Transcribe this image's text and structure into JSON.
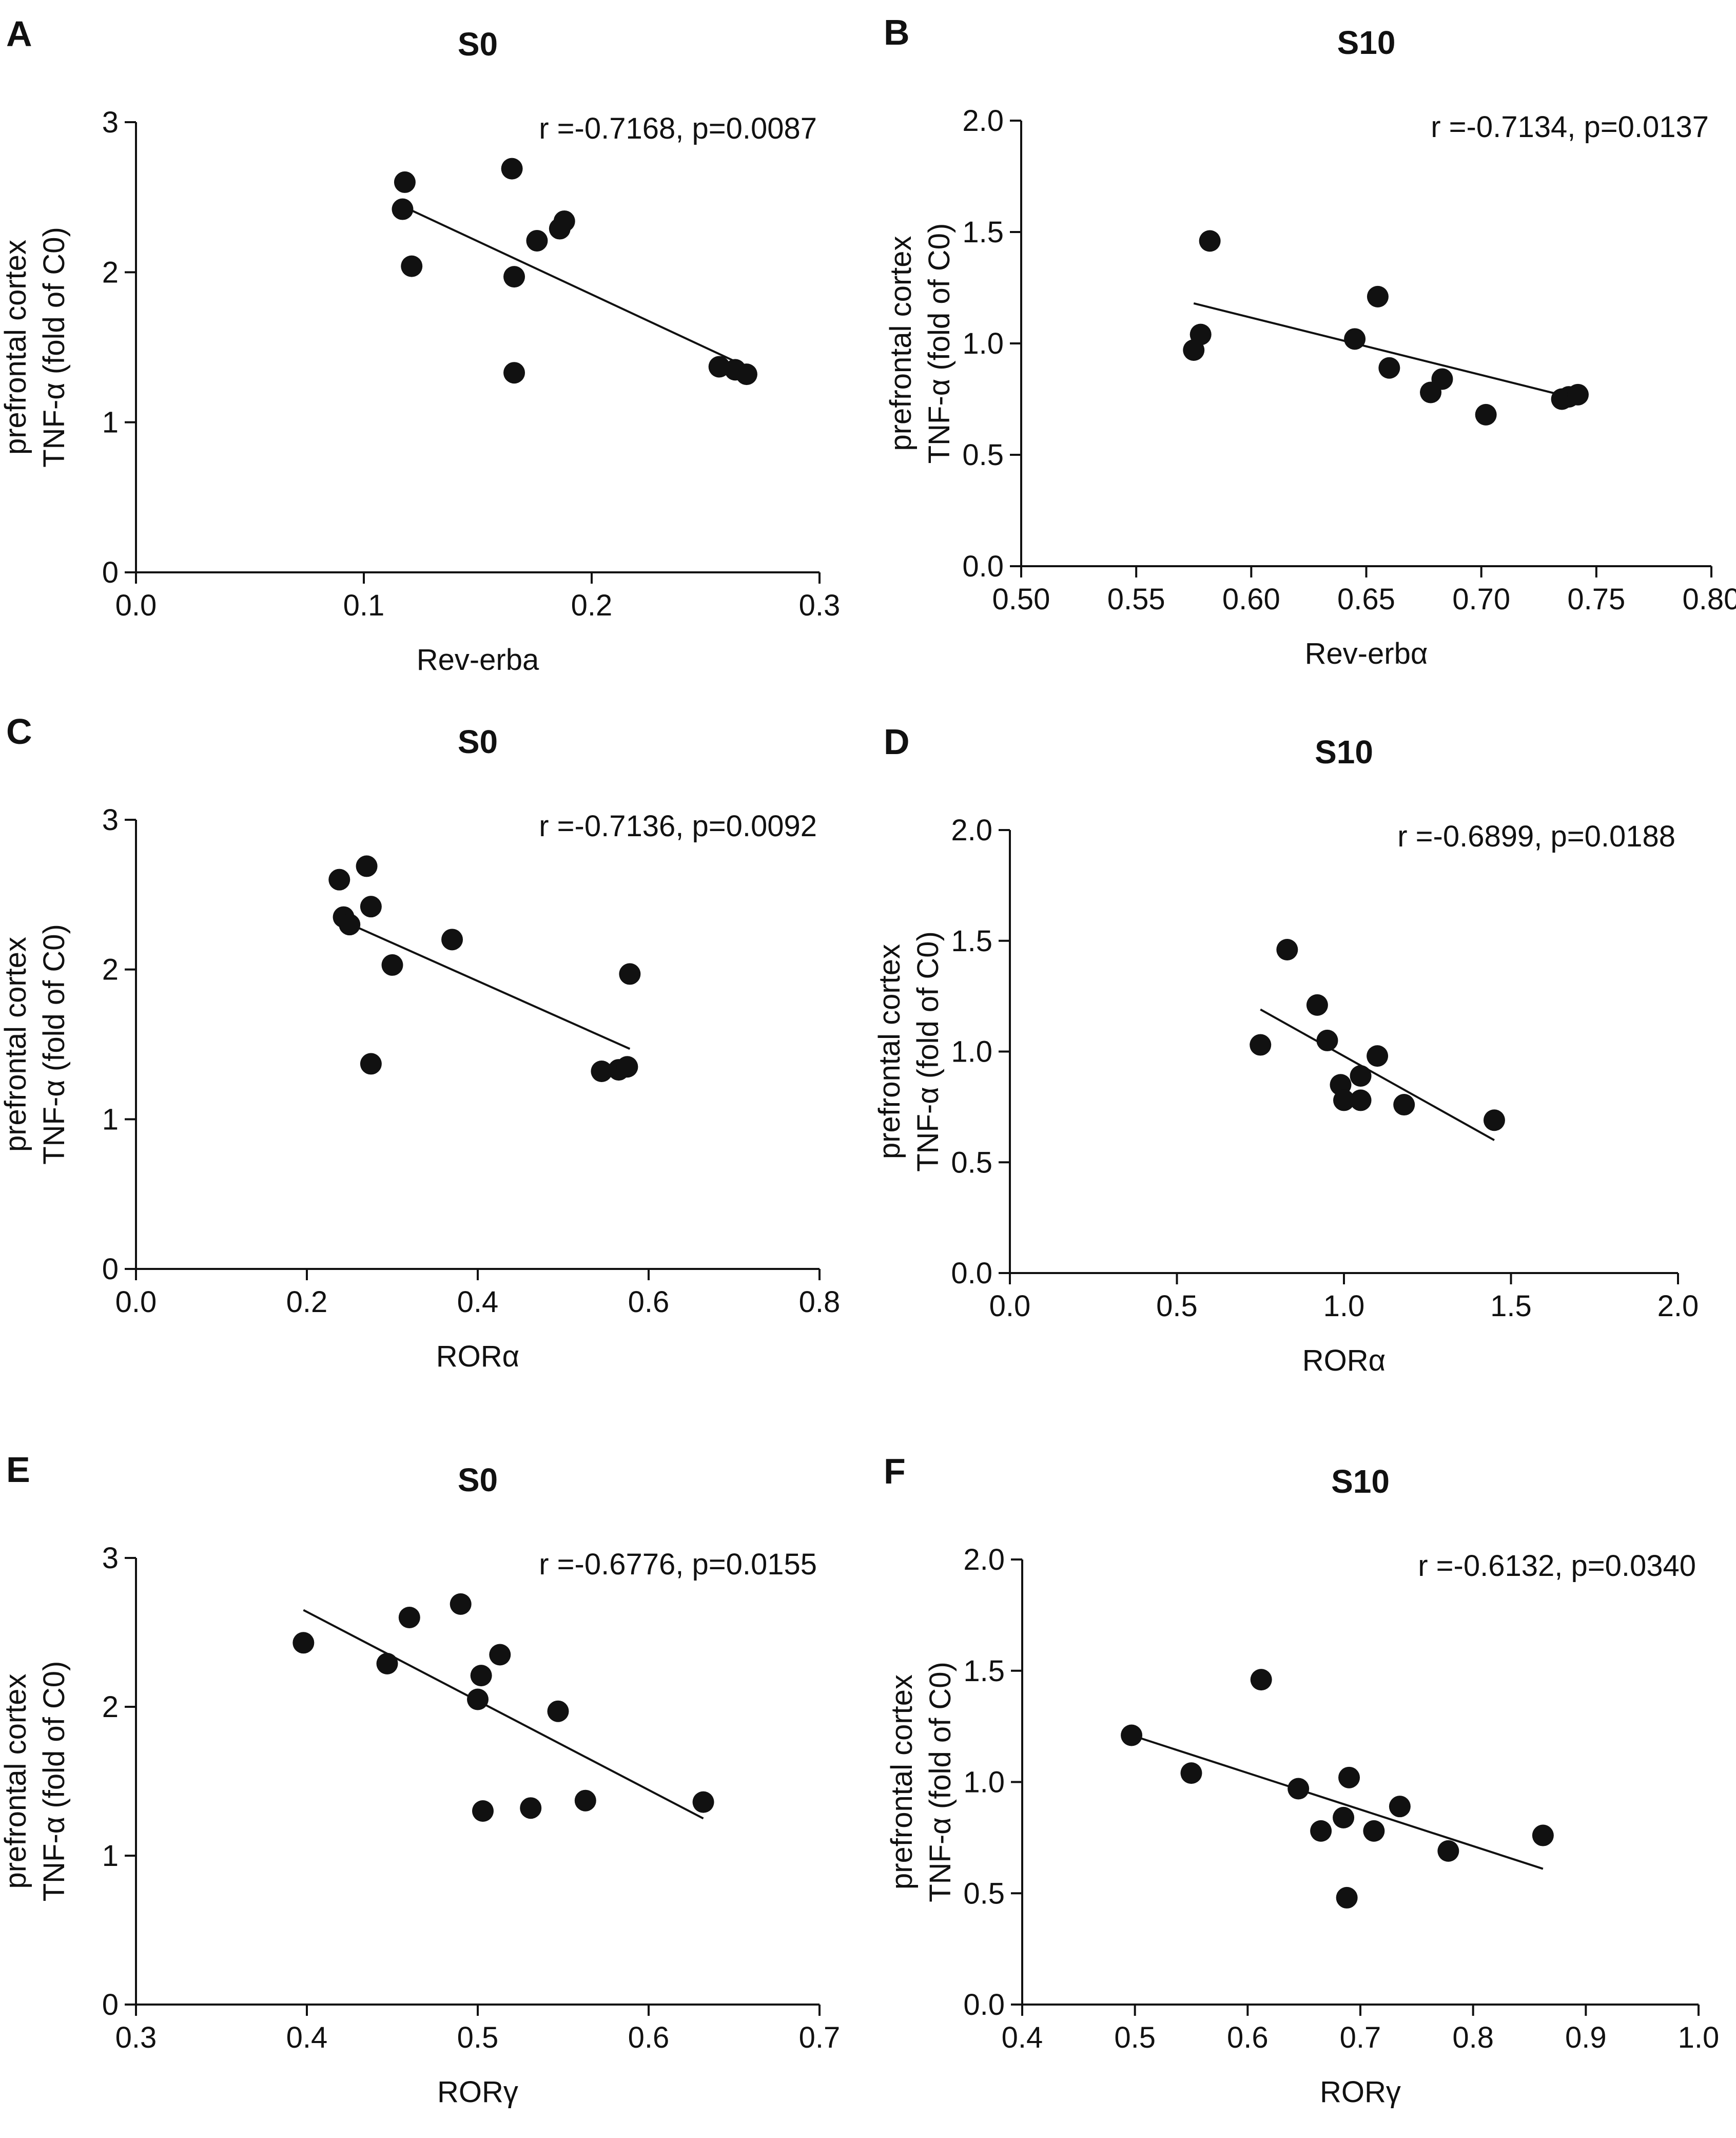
{
  "figure": {
    "shared_ylabel_line1": "prefrontal cortex",
    "shared_ylabel_line2": "TNF-α (fold of C0)"
  },
  "chart_data": [
    {
      "panel": "A",
      "type": "scatter",
      "title": "S0",
      "xlabel": "Rev-erba",
      "ylabel": [
        "prefrontal cortex",
        "TNF-α (fold of C0)"
      ],
      "annotation": "r =-0.7168, p=0.0087",
      "xlim": [
        0.0,
        0.3
      ],
      "ylim": [
        0,
        3
      ],
      "xticks": [
        0.0,
        0.1,
        0.2,
        0.3
      ],
      "xtick_labels": [
        "0.0",
        "0.1",
        "0.2",
        "0.3"
      ],
      "yticks": [
        0,
        1,
        2,
        3
      ],
      "ytick_labels": [
        "0",
        "1",
        "2",
        "3"
      ],
      "points": [
        [
          0.117,
          2.42
        ],
        [
          0.118,
          2.6
        ],
        [
          0.121,
          2.04
        ],
        [
          0.165,
          2.69
        ],
        [
          0.166,
          1.97
        ],
        [
          0.166,
          1.33
        ],
        [
          0.176,
          2.21
        ],
        [
          0.186,
          2.29
        ],
        [
          0.188,
          2.34
        ],
        [
          0.256,
          1.37
        ],
        [
          0.263,
          1.35
        ],
        [
          0.268,
          1.32
        ]
      ],
      "fit": [
        [
          0.117,
          2.44
        ],
        [
          0.268,
          1.37
        ]
      ]
    },
    {
      "panel": "B",
      "type": "scatter",
      "title": "S10",
      "xlabel": "Rev-erbα",
      "ylabel": [
        "prefrontal cortex",
        "TNF-α (fold of C0)"
      ],
      "annotation": "r =-0.7134, p=0.0137",
      "xlim": [
        0.5,
        0.8
      ],
      "ylim": [
        0.0,
        2.0
      ],
      "xticks": [
        0.5,
        0.55,
        0.6,
        0.65,
        0.7,
        0.75,
        0.8
      ],
      "xtick_labels": [
        "0.50",
        "0.55",
        "0.60",
        "0.65",
        "0.70",
        "0.75",
        "0.80"
      ],
      "yticks": [
        0.0,
        0.5,
        1.0,
        1.5,
        2.0
      ],
      "ytick_labels": [
        "0.0",
        "0.5",
        "1.0",
        "1.5",
        "2.0"
      ],
      "points": [
        [
          0.575,
          0.97
        ],
        [
          0.578,
          1.04
        ],
        [
          0.582,
          1.46
        ],
        [
          0.645,
          1.02
        ],
        [
          0.655,
          1.21
        ],
        [
          0.66,
          0.89
        ],
        [
          0.678,
          0.78
        ],
        [
          0.683,
          0.84
        ],
        [
          0.702,
          0.68
        ],
        [
          0.735,
          0.75
        ],
        [
          0.738,
          0.76
        ],
        [
          0.742,
          0.77
        ]
      ],
      "fit": [
        [
          0.575,
          1.18
        ],
        [
          0.742,
          0.75
        ]
      ]
    },
    {
      "panel": "C",
      "type": "scatter",
      "title": "S0",
      "xlabel": "RORα",
      "ylabel": [
        "prefrontal cortex",
        "TNF-α (fold of C0)"
      ],
      "annotation": "r =-0.7136, p=0.0092",
      "xlim": [
        0.0,
        0.8
      ],
      "ylim": [
        0,
        3
      ],
      "xticks": [
        0.0,
        0.2,
        0.4,
        0.6,
        0.8
      ],
      "xtick_labels": [
        "0.0",
        "0.2",
        "0.4",
        "0.6",
        "0.8"
      ],
      "yticks": [
        0,
        1,
        2,
        3
      ],
      "ytick_labels": [
        "0",
        "1",
        "2",
        "3"
      ],
      "points": [
        [
          0.238,
          2.6
        ],
        [
          0.243,
          2.35
        ],
        [
          0.25,
          2.3
        ],
        [
          0.27,
          2.69
        ],
        [
          0.275,
          2.42
        ],
        [
          0.3,
          2.03
        ],
        [
          0.275,
          1.37
        ],
        [
          0.37,
          2.2
        ],
        [
          0.545,
          1.32
        ],
        [
          0.565,
          1.33
        ],
        [
          0.575,
          1.35
        ],
        [
          0.578,
          1.97
        ]
      ],
      "fit": [
        [
          0.24,
          2.33
        ],
        [
          0.578,
          1.47
        ]
      ]
    },
    {
      "panel": "D",
      "type": "scatter",
      "title": "S10",
      "xlabel": "RORα",
      "ylabel": [
        "prefrontal cortex",
        "TNF-α (fold of C0)"
      ],
      "annotation": "r =-0.6899, p=0.0188",
      "xlim": [
        0.0,
        2.0
      ],
      "ylim": [
        0.0,
        2.0
      ],
      "xticks": [
        0.0,
        0.5,
        1.0,
        1.5,
        2.0
      ],
      "xtick_labels": [
        "0.0",
        "0.5",
        "1.0",
        "1.5",
        "2.0"
      ],
      "yticks": [
        0.0,
        0.5,
        1.0,
        1.5,
        2.0
      ],
      "ytick_labels": [
        "0.0",
        "0.5",
        "1.0",
        "1.5",
        "2.0"
      ],
      "points": [
        [
          0.75,
          1.03
        ],
        [
          0.83,
          1.46
        ],
        [
          0.92,
          1.21
        ],
        [
          0.95,
          1.05
        ],
        [
          0.99,
          0.85
        ],
        [
          1.0,
          0.78
        ],
        [
          1.05,
          0.89
        ],
        [
          1.05,
          0.78
        ],
        [
          1.1,
          0.98
        ],
        [
          1.18,
          0.76
        ],
        [
          1.45,
          0.69
        ]
      ],
      "fit": [
        [
          0.75,
          1.19
        ],
        [
          1.45,
          0.6
        ]
      ]
    },
    {
      "panel": "E",
      "type": "scatter",
      "title": "S0",
      "xlabel": "RORγ",
      "ylabel": [
        "prefrontal cortex",
        "TNF-α (fold of C0)"
      ],
      "annotation": "r =-0.6776, p=0.0155",
      "xlim": [
        0.3,
        0.7
      ],
      "ylim": [
        0,
        3
      ],
      "xticks": [
        0.3,
        0.4,
        0.5,
        0.6,
        0.7
      ],
      "xtick_labels": [
        "0.3",
        "0.4",
        "0.5",
        "0.6",
        "0.7"
      ],
      "yticks": [
        0,
        1,
        2,
        3
      ],
      "ytick_labels": [
        "0",
        "1",
        "2",
        "3"
      ],
      "points": [
        [
          0.398,
          2.43
        ],
        [
          0.447,
          2.29
        ],
        [
          0.46,
          2.6
        ],
        [
          0.49,
          2.69
        ],
        [
          0.5,
          2.05
        ],
        [
          0.502,
          2.21
        ],
        [
          0.513,
          2.35
        ],
        [
          0.503,
          1.3
        ],
        [
          0.531,
          1.32
        ],
        [
          0.547,
          1.97
        ],
        [
          0.563,
          1.37
        ],
        [
          0.632,
          1.36
        ]
      ],
      "fit": [
        [
          0.398,
          2.65
        ],
        [
          0.632,
          1.25
        ]
      ]
    },
    {
      "panel": "F",
      "type": "scatter",
      "title": "S10",
      "xlabel": "RORγ",
      "ylabel": [
        "prefrontal cortex",
        "TNF-α (fold of C0)"
      ],
      "annotation": "r =-0.6132, p=0.0340",
      "xlim": [
        0.4,
        1.0
      ],
      "ylim": [
        0.0,
        2.0
      ],
      "xticks": [
        0.4,
        0.5,
        0.6,
        0.7,
        0.8,
        0.9,
        1.0
      ],
      "xtick_labels": [
        "0.4",
        "0.5",
        "0.6",
        "0.7",
        "0.8",
        "0.9",
        "1.0"
      ],
      "yticks": [
        0.0,
        0.5,
        1.0,
        1.5,
        2.0
      ],
      "ytick_labels": [
        "0.0",
        "0.5",
        "1.0",
        "1.5",
        "2.0"
      ],
      "points": [
        [
          0.497,
          1.21
        ],
        [
          0.55,
          1.04
        ],
        [
          0.612,
          1.46
        ],
        [
          0.645,
          0.97
        ],
        [
          0.665,
          0.78
        ],
        [
          0.685,
          0.84
        ],
        [
          0.69,
          1.02
        ],
        [
          0.688,
          0.48
        ],
        [
          0.712,
          0.78
        ],
        [
          0.735,
          0.89
        ],
        [
          0.778,
          0.69
        ],
        [
          0.862,
          0.76
        ]
      ],
      "fit": [
        [
          0.497,
          1.21
        ],
        [
          0.862,
          0.61
        ]
      ]
    }
  ]
}
